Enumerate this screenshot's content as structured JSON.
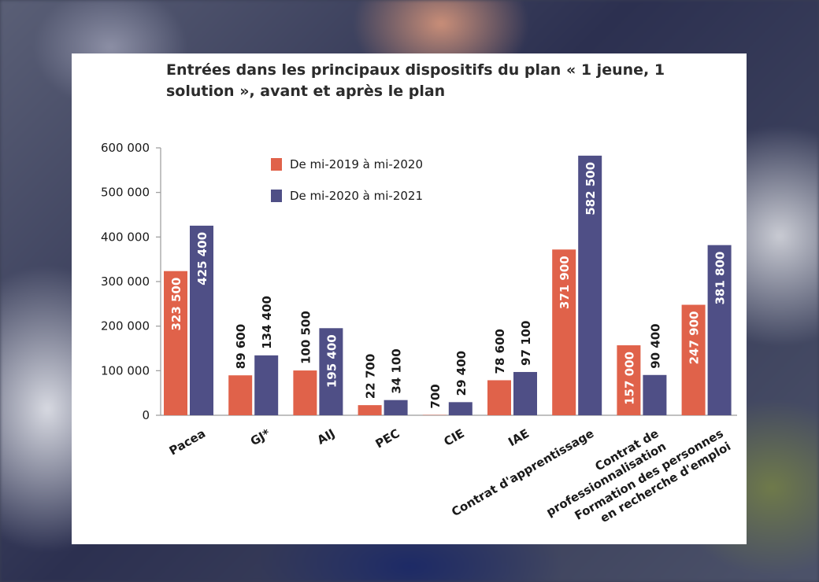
{
  "chart_data": {
    "type": "bar",
    "title": "Entrées dans les principaux dispositifs du plan « 1 jeune, 1 solution », avant et après le plan",
    "xlabel": "",
    "ylabel": "",
    "ylim": [
      0,
      600000
    ],
    "yticks": [
      0,
      100000,
      200000,
      300000,
      400000,
      500000,
      600000
    ],
    "ytick_labels": [
      "0",
      "100 000",
      "200 000",
      "300 000",
      "400 000",
      "500 000",
      "600 000"
    ],
    "grid": false,
    "legend_position": "top-center",
    "categories": [
      [
        "Pacea"
      ],
      [
        "GJ*"
      ],
      [
        "AIJ"
      ],
      [
        "PEC"
      ],
      [
        "CIE"
      ],
      [
        "IAE"
      ],
      [
        "Contrat d'apprentissage"
      ],
      [
        "Contrat de",
        "professionnalisation"
      ],
      [
        "Formation des personnes",
        "en recherche d'emploi"
      ]
    ],
    "series": [
      {
        "name": "De mi-2019 à mi-2020",
        "color": "#e0624a",
        "values": [
          323500,
          89600,
          100500,
          22700,
          700,
          78600,
          371900,
          157000,
          247900
        ],
        "labels": [
          "323 500",
          "89 600",
          "100 500",
          "22 700",
          "700",
          "78 600",
          "371 900",
          "157 000",
          "247 900"
        ]
      },
      {
        "name": "De mi-2020 à mi-2021",
        "color": "#4f4f86",
        "values": [
          425400,
          134400,
          195400,
          34100,
          29400,
          97100,
          582500,
          90400,
          381800
        ],
        "labels": [
          "425 400",
          "134 400",
          "195 400",
          "34 100",
          "29 400",
          "97 100",
          "582 500",
          "90 400",
          "381 800"
        ]
      }
    ]
  }
}
